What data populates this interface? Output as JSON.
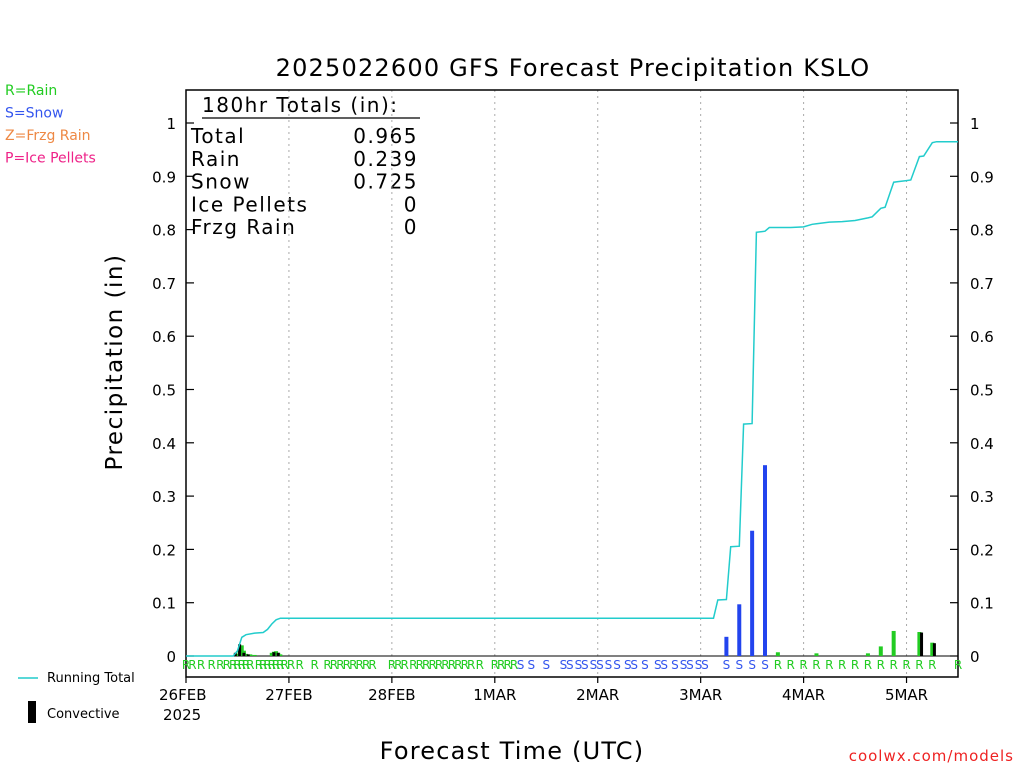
{
  "chart_data": {
    "type": "bar",
    "title": "2025022600 GFS Forecast Precipitation KSLO",
    "xlabel": "Forecast Time (UTC)",
    "ylabel": "Precipitation (in)",
    "credit": "coolwx.com/models",
    "ylim": [
      0,
      1.05
    ],
    "y_ticks": [
      0,
      0.1,
      0.2,
      0.3,
      0.4,
      0.5,
      0.6,
      0.7,
      0.8,
      0.9,
      1
    ],
    "y_tick_labels": [
      "0",
      "0.1",
      "0.2",
      "0.3",
      "0.4",
      "0.5",
      "0.6",
      "0.7",
      "0.8",
      "0.9",
      "1"
    ],
    "x_range_hours": [
      0,
      180
    ],
    "x_ticks": [
      {
        "hour": 0,
        "label": "26FEB",
        "sublabel": "2025"
      },
      {
        "hour": 24,
        "label": "27FEB"
      },
      {
        "hour": 48,
        "label": "28FEB"
      },
      {
        "hour": 72,
        "label": "1MAR"
      },
      {
        "hour": 96,
        "label": "2MAR"
      },
      {
        "hour": 120,
        "label": "3MAR"
      },
      {
        "hour": 144,
        "label": "4MAR"
      },
      {
        "hour": 168,
        "label": "5MAR"
      }
    ],
    "grid": true,
    "ptype_legend": [
      {
        "label": "R=Rain",
        "color": "#22cc22"
      },
      {
        "label": "S=Snow",
        "color": "#3355ee"
      },
      {
        "label": "Z=Frzg Rain",
        "color": "#ee8844"
      },
      {
        "label": "P=Ice Pellets",
        "color": "#ee2288"
      }
    ],
    "series_legend": [
      {
        "label": "Running Total",
        "color": "#22cccc"
      },
      {
        "label": "Convective",
        "color": "#000000"
      }
    ],
    "totals": {
      "heading": "180hr Totals (in):",
      "rows": [
        {
          "label": "Total",
          "value": "0.965"
        },
        {
          "label": "Rain",
          "value": "0.239"
        },
        {
          "label": "Snow",
          "value": "0.725"
        },
        {
          "label": "Ice Pellets",
          "value": "0"
        },
        {
          "label": "Frzg Rain",
          "value": "0"
        }
      ]
    },
    "precip_bars": [
      {
        "hour": 12,
        "value": 0.004,
        "type": "R"
      },
      {
        "hour": 12.5,
        "value": 0.01,
        "type": "R"
      },
      {
        "hour": 13,
        "value": 0.02,
        "type": "R"
      },
      {
        "hour": 13.5,
        "value": 0.01,
        "type": "R"
      },
      {
        "hour": 14,
        "value": 0.004,
        "type": "R"
      },
      {
        "hour": 15,
        "value": 0.003,
        "type": "R"
      },
      {
        "hour": 16,
        "value": 0.002,
        "type": "R"
      },
      {
        "hour": 20,
        "value": 0.006,
        "type": "R"
      },
      {
        "hour": 20.5,
        "value": 0.008,
        "type": "R"
      },
      {
        "hour": 21,
        "value": 0.009,
        "type": "R"
      },
      {
        "hour": 21.5,
        "value": 0.006,
        "type": "R"
      },
      {
        "hour": 22,
        "value": 0.003,
        "type": "R"
      },
      {
        "hour": 126,
        "value": 0.036,
        "type": "S"
      },
      {
        "hour": 129,
        "value": 0.097,
        "type": "S"
      },
      {
        "hour": 132,
        "value": 0.235,
        "type": "S"
      },
      {
        "hour": 135,
        "value": 0.358,
        "type": "S"
      },
      {
        "hour": 138,
        "value": 0.007,
        "type": "R"
      },
      {
        "hour": 147,
        "value": 0.005,
        "type": "R"
      },
      {
        "hour": 159,
        "value": 0.005,
        "type": "R"
      },
      {
        "hour": 162,
        "value": 0.018,
        "type": "R"
      },
      {
        "hour": 165,
        "value": 0.047,
        "type": "R"
      },
      {
        "hour": 171,
        "value": 0.045,
        "type": "R"
      },
      {
        "hour": 174,
        "value": 0.025,
        "type": "R"
      }
    ],
    "convective_bars": [
      {
        "hour": 11.5,
        "value": 0.006
      },
      {
        "hour": 12.5,
        "value": 0.022
      },
      {
        "hour": 13.5,
        "value": 0.006
      },
      {
        "hour": 14.5,
        "value": 0.003
      },
      {
        "hour": 20.5,
        "value": 0.007
      },
      {
        "hour": 21.5,
        "value": 0.006
      },
      {
        "hour": 171.5,
        "value": 0.044
      },
      {
        "hour": 174.5,
        "value": 0.024
      }
    ],
    "running_total": {
      "hours": [
        0,
        11,
        12,
        13,
        14,
        16,
        18,
        19,
        20,
        21,
        22,
        23,
        120,
        121,
        123,
        124,
        126,
        127,
        129,
        130,
        132,
        133,
        135,
        136,
        138,
        141,
        144,
        146,
        147,
        150,
        153,
        156,
        159,
        160,
        162,
        163,
        165,
        166,
        168,
        169,
        171,
        172,
        174,
        175,
        180
      ],
      "values": [
        0,
        0,
        0.01,
        0.035,
        0.04,
        0.043,
        0.044,
        0.05,
        0.06,
        0.068,
        0.071,
        0.071,
        0.071,
        0.071,
        0.071,
        0.105,
        0.106,
        0.205,
        0.206,
        0.435,
        0.436,
        0.795,
        0.797,
        0.804,
        0.804,
        0.804,
        0.805,
        0.81,
        0.811,
        0.814,
        0.815,
        0.817,
        0.822,
        0.824,
        0.84,
        0.842,
        0.889,
        0.89,
        0.892,
        0.893,
        0.937,
        0.938,
        0.963,
        0.965,
        0.965
      ]
    },
    "ptype_markers": [
      {
        "hour": 0,
        "type": "R"
      },
      {
        "hour": 1.5,
        "type": "R"
      },
      {
        "hour": 3.5,
        "type": "R"
      },
      {
        "hour": 6,
        "type": "R"
      },
      {
        "hour": 8,
        "type": "R"
      },
      {
        "hour": 9.5,
        "type": "R"
      },
      {
        "hour": 11,
        "type": "R"
      },
      {
        "hour": 12,
        "type": "R"
      },
      {
        "hour": 13,
        "type": "R"
      },
      {
        "hour": 14,
        "type": "R"
      },
      {
        "hour": 15,
        "type": "R"
      },
      {
        "hour": 17,
        "type": "R"
      },
      {
        "hour": 18,
        "type": "R"
      },
      {
        "hour": 19,
        "type": "R"
      },
      {
        "hour": 20,
        "type": "R"
      },
      {
        "hour": 21,
        "type": "R"
      },
      {
        "hour": 22,
        "type": "R"
      },
      {
        "hour": 23,
        "type": "R"
      },
      {
        "hour": 24.5,
        "type": "R"
      },
      {
        "hour": 26.5,
        "type": "R"
      },
      {
        "hour": 30,
        "type": "R"
      },
      {
        "hour": 33,
        "type": "R"
      },
      {
        "hour": 34.5,
        "type": "R"
      },
      {
        "hour": 36,
        "type": "R"
      },
      {
        "hour": 37.5,
        "type": "R"
      },
      {
        "hour": 39,
        "type": "R"
      },
      {
        "hour": 40.5,
        "type": "R"
      },
      {
        "hour": 42,
        "type": "R"
      },
      {
        "hour": 43.5,
        "type": "R"
      },
      {
        "hour": 48,
        "type": "R"
      },
      {
        "hour": 49.5,
        "type": "R"
      },
      {
        "hour": 51,
        "type": "R"
      },
      {
        "hour": 53,
        "type": "R"
      },
      {
        "hour": 54.5,
        "type": "R"
      },
      {
        "hour": 56,
        "type": "R"
      },
      {
        "hour": 57.5,
        "type": "R"
      },
      {
        "hour": 59,
        "type": "R"
      },
      {
        "hour": 60.5,
        "type": "R"
      },
      {
        "hour": 62,
        "type": "R"
      },
      {
        "hour": 63.5,
        "type": "R"
      },
      {
        "hour": 65,
        "type": "R"
      },
      {
        "hour": 66.5,
        "type": "R"
      },
      {
        "hour": 68.5,
        "type": "R"
      },
      {
        "hour": 72,
        "type": "R"
      },
      {
        "hour": 73.5,
        "type": "R"
      },
      {
        "hour": 75,
        "type": "R"
      },
      {
        "hour": 76.5,
        "type": "R"
      },
      {
        "hour": 78,
        "type": "S"
      },
      {
        "hour": 80.5,
        "type": "S"
      },
      {
        "hour": 84,
        "type": "S"
      },
      {
        "hour": 88,
        "type": "S"
      },
      {
        "hour": 89.5,
        "type": "S"
      },
      {
        "hour": 91.5,
        "type": "S"
      },
      {
        "hour": 93,
        "type": "S"
      },
      {
        "hour": 95,
        "type": "S"
      },
      {
        "hour": 96.5,
        "type": "S"
      },
      {
        "hour": 98.5,
        "type": "S"
      },
      {
        "hour": 100.5,
        "type": "S"
      },
      {
        "hour": 103,
        "type": "S"
      },
      {
        "hour": 104.5,
        "type": "S"
      },
      {
        "hour": 107,
        "type": "S"
      },
      {
        "hour": 110,
        "type": "S"
      },
      {
        "hour": 111.5,
        "type": "S"
      },
      {
        "hour": 114,
        "type": "S"
      },
      {
        "hour": 116,
        "type": "S"
      },
      {
        "hour": 117.5,
        "type": "S"
      },
      {
        "hour": 119.5,
        "type": "S"
      },
      {
        "hour": 121,
        "type": "S"
      },
      {
        "hour": 126,
        "type": "S"
      },
      {
        "hour": 129,
        "type": "S"
      },
      {
        "hour": 132,
        "type": "S"
      },
      {
        "hour": 135,
        "type": "S"
      },
      {
        "hour": 138,
        "type": "R"
      },
      {
        "hour": 141,
        "type": "R"
      },
      {
        "hour": 144,
        "type": "R"
      },
      {
        "hour": 147,
        "type": "R"
      },
      {
        "hour": 150,
        "type": "R"
      },
      {
        "hour": 153,
        "type": "R"
      },
      {
        "hour": 156,
        "type": "R"
      },
      {
        "hour": 159,
        "type": "R"
      },
      {
        "hour": 162,
        "type": "R"
      },
      {
        "hour": 165,
        "type": "R"
      },
      {
        "hour": 168,
        "type": "R"
      },
      {
        "hour": 171,
        "type": "R"
      },
      {
        "hour": 174,
        "type": "R"
      },
      {
        "hour": 180,
        "type": "R"
      }
    ]
  }
}
